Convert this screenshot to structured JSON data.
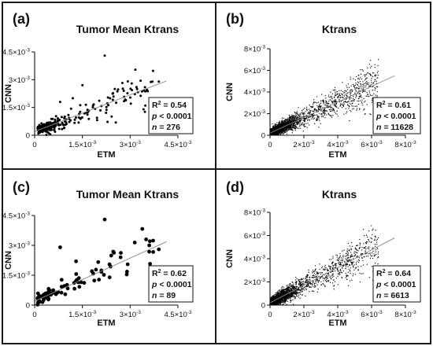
{
  "chart_data": [
    {
      "panel": "(a)",
      "type": "scatter",
      "title": "Tumor Mean Ktrans",
      "xlabel": "ETM",
      "ylabel": "CNN",
      "xlim": [
        0,
        0.0045
      ],
      "ylim": [
        0,
        0.0045
      ],
      "xticks": [
        0,
        0.0015,
        0.003,
        0.0045
      ],
      "yticks": [
        0,
        0.0015,
        0.003,
        0.0045
      ],
      "tick_labels_x": [
        "0",
        "1.5×10-3",
        "3×10-3",
        "4.5×10-3"
      ],
      "tick_labels_y": [
        "0",
        "1.5×10-3",
        "3×10-3",
        "4.5×10-3"
      ],
      "fit": {
        "slope": 0.66,
        "intercept": 0.0002
      },
      "stats": {
        "r2": "R2 = 0.54",
        "p": "p < 0.0001",
        "n": "n = 276"
      },
      "n_points": 276,
      "marker": "small",
      "sample_points": [
        [
          0.0022,
          0.0043
        ],
        [
          0.0039,
          0.0029
        ],
        [
          0.0037,
          0.0029
        ],
        [
          0.0032,
          0.0026
        ],
        [
          0.0028,
          0.0024
        ],
        [
          0.0015,
          0.0027
        ],
        [
          0.0012,
          0.002
        ],
        [
          0.0008,
          0.0018
        ]
      ]
    },
    {
      "panel": "(b)",
      "type": "scatter",
      "title": "Ktrans",
      "xlabel": "ETM",
      "ylabel": "CNN",
      "xlim": [
        0,
        0.008
      ],
      "ylim": [
        0,
        0.008
      ],
      "xticks": [
        0,
        0.002,
        0.004,
        0.006,
        0.008
      ],
      "yticks": [
        0,
        0.002,
        0.004,
        0.006,
        0.008
      ],
      "tick_labels_x": [
        "0",
        "2×10-3",
        "4×10-3",
        "6×10-3",
        "8×10-3"
      ],
      "tick_labels_y": [
        "0",
        "2×10-3",
        "4×10-3",
        "6×10-3",
        "8×10-3"
      ],
      "fit": {
        "slope": 0.72,
        "intercept": 0.0002
      },
      "stats": {
        "r2": "R2 = 0.61",
        "p": "p < 0.0001",
        "n": "n = 11628"
      },
      "n_points": 11628,
      "marker": "dense"
    },
    {
      "panel": "(c)",
      "type": "scatter",
      "title": "Tumor Mean Ktrans",
      "xlabel": "ETM",
      "ylabel": "CNN",
      "xlim": [
        0,
        0.0045
      ],
      "ylim": [
        0,
        0.0045
      ],
      "xticks": [
        0,
        0.0015,
        0.003,
        0.0045
      ],
      "yticks": [
        0,
        0.0015,
        0.003,
        0.0045
      ],
      "tick_labels_x": [
        "0",
        "1.5×10-3",
        "3×10-3",
        "4.5×10-3"
      ],
      "tick_labels_y": [
        "0",
        "1.5×10-3",
        "3×10-3",
        "4.5×10-3"
      ],
      "fit": {
        "slope": 0.72,
        "intercept": 0.0002
      },
      "stats": {
        "r2": "R2 = 0.62",
        "p": "p < 0.0001",
        "n": "n = 89"
      },
      "n_points": 89,
      "marker": "large",
      "sample_points": [
        [
          0.0022,
          0.0043
        ],
        [
          0.0039,
          0.0028
        ],
        [
          0.0036,
          0.003
        ],
        [
          0.0027,
          0.0024
        ],
        [
          0.0008,
          0.0029
        ],
        [
          0.0013,
          0.0022
        ],
        [
          0.0018,
          0.0017
        ],
        [
          0.0035,
          0.0033
        ]
      ]
    },
    {
      "panel": "(d)",
      "type": "scatter",
      "title": "Ktrans",
      "xlabel": "ETM",
      "ylabel": "CNN",
      "xlim": [
        0,
        0.008
      ],
      "ylim": [
        0,
        0.008
      ],
      "xticks": [
        0,
        0.002,
        0.004,
        0.006,
        0.008
      ],
      "yticks": [
        0,
        0.002,
        0.004,
        0.006,
        0.008
      ],
      "tick_labels_x": [
        "0",
        "2×10-3",
        "4×10-3",
        "6×10-3",
        "8×10-3"
      ],
      "tick_labels_y": [
        "0",
        "2×10-3",
        "4×10-3",
        "6×10-3",
        "8×10-3"
      ],
      "fit": {
        "slope": 0.76,
        "intercept": 0.0002
      },
      "stats": {
        "r2": "R2 = 0.64",
        "p": "p < 0.0001",
        "n": "n = 6613"
      },
      "n_points": 6613,
      "marker": "dense"
    }
  ]
}
